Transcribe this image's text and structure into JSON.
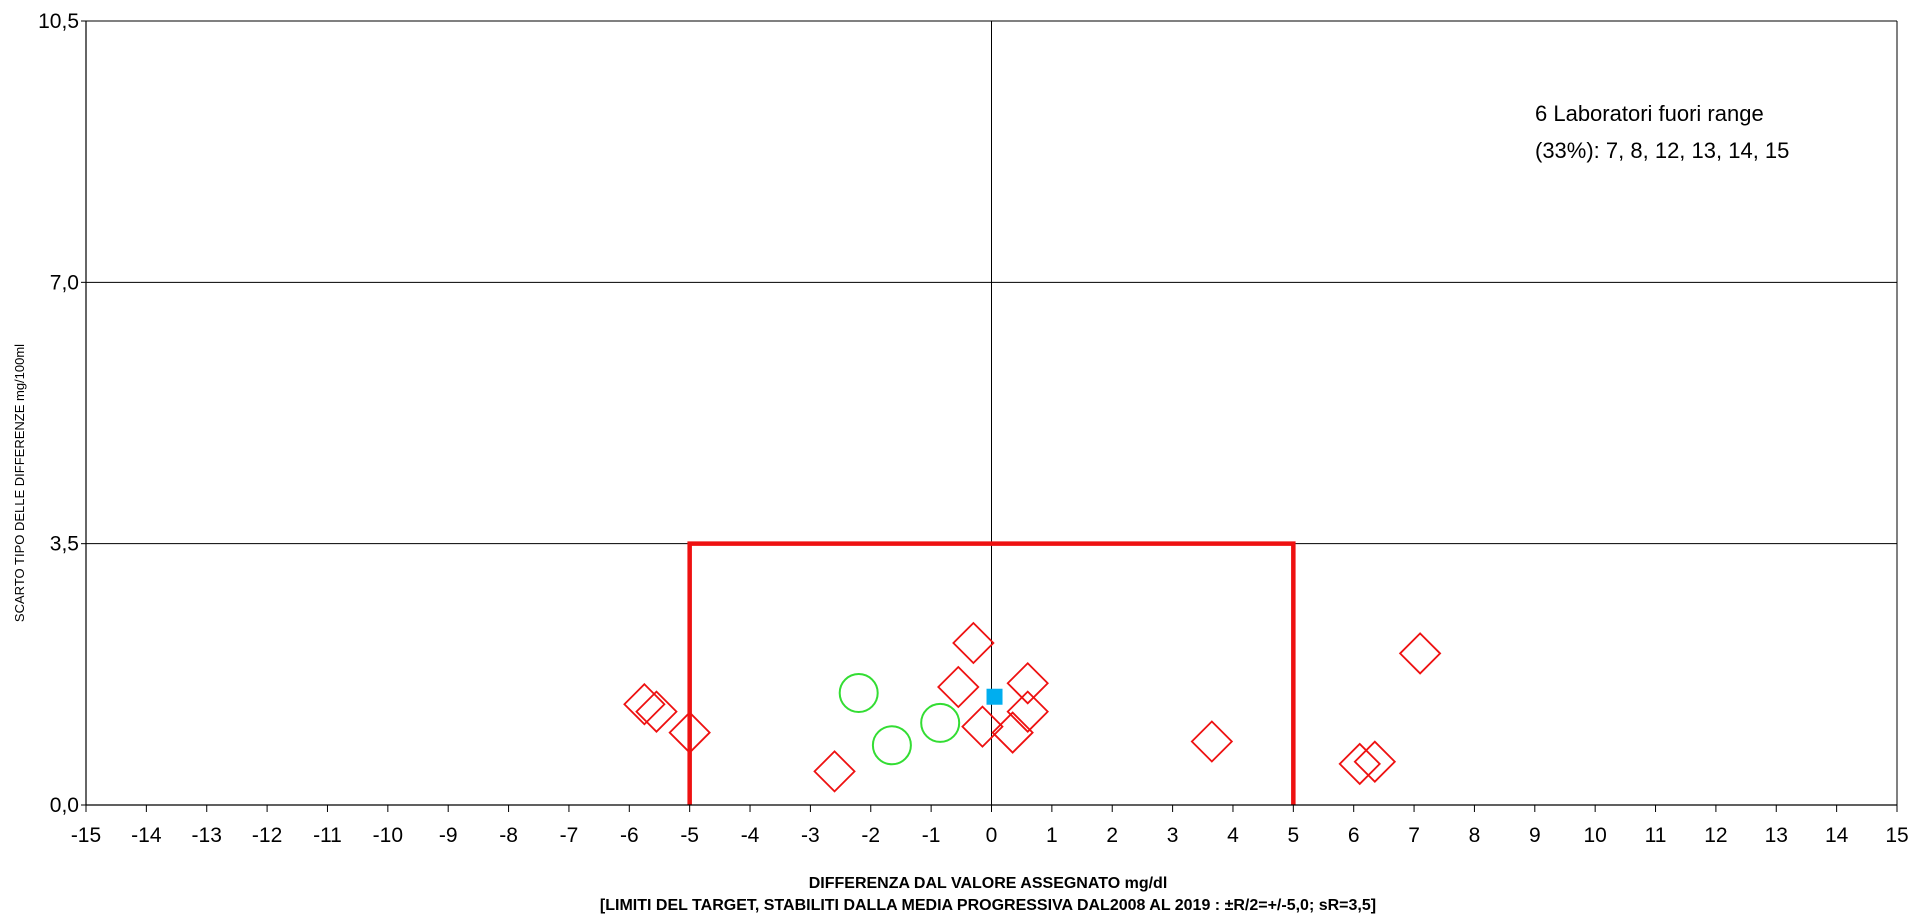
{
  "chart_data": {
    "type": "scatter",
    "title": "",
    "xlabel": "DIFFERENZA DAL VALORE ASSEGNATO mg/dl",
    "xlabel_sub": "[LIMITI DEL TARGET, STABILITI DALLA MEDIA PROGRESSIVA DAL2008 AL 2019 : ±R/2=+/-5,0; sR=3,5]",
    "ylabel": "SCARTO TIPO DELLE DIFFERENZE mg/100ml",
    "xlim": [
      -15,
      15
    ],
    "ylim": [
      0,
      10.5
    ],
    "x_ticks": [
      "-15",
      "-14",
      "-13",
      "-12",
      "-11",
      "-10",
      "-9",
      "-8",
      "-7",
      "-6",
      "-5",
      "-4",
      "-3",
      "-2",
      "-1",
      "0",
      "1",
      "2",
      "3",
      "4",
      "5",
      "6",
      "7",
      "8",
      "9",
      "10",
      "11",
      "12",
      "13",
      "14",
      "15"
    ],
    "y_ticks": [
      {
        "value": 0,
        "label": "0,0"
      },
      {
        "value": 3.5,
        "label": "3,5"
      },
      {
        "value": 7,
        "label": "7,0"
      },
      {
        "value": 10.5,
        "label": "10,5"
      }
    ],
    "grid": "horizontal at y ticks; vertical at x=0",
    "target_box": {
      "x_min": -5,
      "x_max": 5,
      "y_max": 3.5,
      "color": "#ee1111"
    },
    "annotation": [
      "6 Laboratori fuori range",
      "(33%): 7, 8, 12, 13, 14, 15"
    ],
    "series": [
      {
        "marker": "diamond",
        "color": "#ee1111",
        "points": [
          {
            "x": -5.75,
            "y": 1.35
          },
          {
            "x": -5.55,
            "y": 1.25
          },
          {
            "x": -5.0,
            "y": 0.97
          },
          {
            "x": -2.6,
            "y": 0.45
          },
          {
            "x": -0.55,
            "y": 1.58
          },
          {
            "x": -0.3,
            "y": 2.17
          },
          {
            "x": -0.15,
            "y": 1.05
          },
          {
            "x": 0.35,
            "y": 0.97
          },
          {
            "x": 0.6,
            "y": 1.63
          },
          {
            "x": 0.6,
            "y": 1.25
          },
          {
            "x": 3.65,
            "y": 0.85
          },
          {
            "x": 6.1,
            "y": 0.55
          },
          {
            "x": 6.35,
            "y": 0.58
          },
          {
            "x": 7.1,
            "y": 2.03
          }
        ]
      },
      {
        "marker": "circle",
        "color": "#33dd33",
        "points": [
          {
            "x": -2.2,
            "y": 1.5
          },
          {
            "x": -1.65,
            "y": 0.8
          },
          {
            "x": -0.85,
            "y": 1.1
          }
        ]
      },
      {
        "marker": "square",
        "color": "#00aeef",
        "points": [
          {
            "x": 0.05,
            "y": 1.45
          }
        ]
      }
    ]
  }
}
